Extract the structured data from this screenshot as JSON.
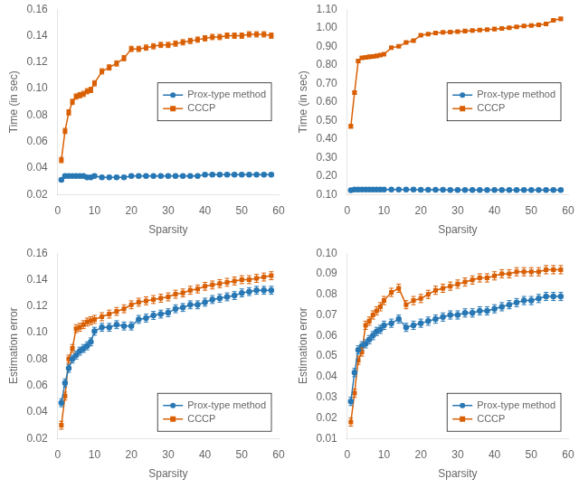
{
  "chart_data": [
    {
      "type": "line",
      "x": [
        1,
        2,
        3,
        4,
        5,
        6,
        7,
        8,
        9,
        10,
        12,
        14,
        16,
        18,
        20,
        22,
        24,
        26,
        28,
        30,
        32,
        34,
        36,
        38,
        40,
        42,
        44,
        46,
        48,
        50,
        52,
        54,
        56,
        58
      ],
      "xlabel": "Sparsity",
      "ylabel": "Time (in sec)",
      "xlim": [
        0,
        60
      ],
      "xticks": [
        0,
        10,
        20,
        30,
        40,
        50,
        60
      ],
      "ylim": [
        0.02,
        0.16
      ],
      "yticks": [
        0.02,
        0.04,
        0.06,
        0.08,
        {
          "value": 0.1,
          "label": "0.10"
        },
        0.12,
        0.14,
        0.16
      ],
      "grid": false,
      "legend": "center right",
      "series": [
        {
          "name": "Prox-type method",
          "color": "#2878b5",
          "marker": "circle",
          "values": [
            0.031,
            0.034,
            0.034,
            0.034,
            0.034,
            0.034,
            0.034,
            0.033,
            0.033,
            0.034,
            0.033,
            0.033,
            0.033,
            0.033,
            0.034,
            0.034,
            0.034,
            0.034,
            0.034,
            0.034,
            0.034,
            0.034,
            0.034,
            0.034,
            0.035,
            0.035,
            0.035,
            0.035,
            0.035,
            0.035,
            0.035,
            0.035,
            0.035,
            0.035
          ],
          "errors": [
            0.001,
            0.001,
            0.001,
            0.001,
            0.001,
            0.001,
            0.001,
            0.001,
            0.001,
            0.001,
            0.001,
            0.001,
            0.001,
            0.001,
            0.001,
            0.001,
            0.001,
            0.001,
            0.001,
            0.001,
            0.001,
            0.001,
            0.001,
            0.001,
            0.001,
            0.001,
            0.001,
            0.001,
            0.001,
            0.001,
            0.001,
            0.001,
            0.001,
            0.001
          ]
        },
        {
          "name": "CCCP",
          "color": "#d95f02",
          "marker": "square",
          "values": [
            0.046,
            0.068,
            0.082,
            0.09,
            0.094,
            0.095,
            0.096,
            0.098,
            0.099,
            0.104,
            0.113,
            0.116,
            0.119,
            0.123,
            0.13,
            0.13,
            0.131,
            0.132,
            0.133,
            0.133,
            0.134,
            0.135,
            0.136,
            0.137,
            0.138,
            0.139,
            0.139,
            0.14,
            0.14,
            0.14,
            0.141,
            0.141,
            0.141,
            0.14
          ],
          "errors": [
            0.002,
            0.002,
            0.002,
            0.002,
            0.002,
            0.002,
            0.002,
            0.002,
            0.002,
            0.002,
            0.002,
            0.002,
            0.002,
            0.002,
            0.002,
            0.002,
            0.002,
            0.002,
            0.002,
            0.002,
            0.002,
            0.002,
            0.002,
            0.002,
            0.002,
            0.002,
            0.002,
            0.002,
            0.002,
            0.002,
            0.002,
            0.002,
            0.002,
            0.002
          ]
        }
      ]
    },
    {
      "type": "line",
      "x": [
        1,
        2,
        3,
        4,
        5,
        6,
        7,
        8,
        9,
        10,
        12,
        14,
        16,
        18,
        20,
        22,
        24,
        26,
        28,
        30,
        32,
        34,
        36,
        38,
        40,
        42,
        44,
        46,
        48,
        50,
        52,
        54,
        56,
        58
      ],
      "xlabel": "Sparsity",
      "ylabel": "Time (in sec)",
      "xlim": [
        0,
        60
      ],
      "xticks": [
        0,
        10,
        20,
        30,
        40,
        50,
        60
      ],
      "ylim": [
        0.1,
        1.1
      ],
      "yticks": [
        {
          "value": 0.1,
          "label": "0.10"
        },
        {
          "value": 0.2,
          "label": "0.20"
        },
        {
          "value": 0.3,
          "label": "0.30"
        },
        {
          "value": 0.4,
          "label": "0.40"
        },
        {
          "value": 0.5,
          "label": "0.50"
        },
        {
          "value": 0.6,
          "label": "0.60"
        },
        {
          "value": 0.7,
          "label": "0.70"
        },
        {
          "value": 0.8,
          "label": "0.80"
        },
        {
          "value": 0.9,
          "label": "0.90"
        },
        {
          "value": 1.0,
          "label": "1.00"
        },
        {
          "value": 1.1,
          "label": "1.10"
        }
      ],
      "grid": false,
      "legend": "center right",
      "series": [
        {
          "name": "Prox-type method",
          "color": "#2878b5",
          "marker": "circle",
          "values": [
            0.123,
            0.127,
            0.127,
            0.127,
            0.127,
            0.127,
            0.127,
            0.127,
            0.127,
            0.126,
            0.126,
            0.126,
            0.126,
            0.126,
            0.125,
            0.125,
            0.125,
            0.125,
            0.124,
            0.124,
            0.124,
            0.124,
            0.124,
            0.124,
            0.124,
            0.124,
            0.124,
            0.124,
            0.124,
            0.124,
            0.124,
            0.124,
            0.124,
            0.124
          ],
          "errors": [
            0.003,
            0.001,
            0.001,
            0.001,
            0.001,
            0.001,
            0.001,
            0.001,
            0.001,
            0.001,
            0.001,
            0.001,
            0.001,
            0.001,
            0.001,
            0.001,
            0.001,
            0.001,
            0.001,
            0.001,
            0.001,
            0.001,
            0.001,
            0.001,
            0.001,
            0.001,
            0.001,
            0.001,
            0.001,
            0.001,
            0.001,
            0.001,
            0.001,
            0.001
          ]
        },
        {
          "name": "CCCP",
          "color": "#d95f02",
          "marker": "square",
          "values": [
            0.468,
            0.65,
            0.82,
            0.838,
            0.84,
            0.843,
            0.845,
            0.848,
            0.852,
            0.857,
            0.892,
            0.9,
            0.92,
            0.93,
            0.96,
            0.966,
            0.972,
            0.975,
            0.977,
            0.979,
            0.982,
            0.985,
            0.988,
            0.99,
            0.993,
            0.996,
            1.0,
            1.005,
            1.01,
            1.012,
            1.016,
            1.02,
            1.04,
            1.048
          ],
          "errors": [
            0.01,
            0.008,
            0.006,
            0.005,
            0.005,
            0.005,
            0.005,
            0.005,
            0.005,
            0.005,
            0.005,
            0.005,
            0.005,
            0.005,
            0.005,
            0.005,
            0.005,
            0.005,
            0.005,
            0.005,
            0.005,
            0.005,
            0.005,
            0.005,
            0.005,
            0.005,
            0.005,
            0.005,
            0.005,
            0.005,
            0.005,
            0.005,
            0.005,
            0.005
          ]
        }
      ]
    },
    {
      "type": "line",
      "x": [
        1,
        2,
        3,
        4,
        5,
        6,
        7,
        8,
        9,
        10,
        12,
        14,
        16,
        18,
        20,
        22,
        24,
        26,
        28,
        30,
        32,
        34,
        36,
        38,
        40,
        42,
        44,
        46,
        48,
        50,
        52,
        54,
        56,
        58
      ],
      "xlabel": "Sparsity",
      "ylabel": "Estimation error",
      "xlim": [
        0,
        60
      ],
      "xticks": [
        0,
        10,
        20,
        30,
        40,
        50,
        60
      ],
      "ylim": [
        0.02,
        0.16
      ],
      "yticks": [
        0.02,
        0.04,
        0.06,
        0.08,
        {
          "value": 0.1,
          "label": "0.10"
        },
        0.12,
        0.14,
        0.16
      ],
      "grid": false,
      "legend": "lower right",
      "series": [
        {
          "name": "Prox-type method",
          "color": "#2878b5",
          "marker": "circle",
          "values": [
            0.047,
            0.062,
            0.073,
            0.08,
            0.083,
            0.086,
            0.088,
            0.09,
            0.093,
            0.101,
            0.104,
            0.104,
            0.106,
            0.105,
            0.105,
            0.11,
            0.111,
            0.113,
            0.114,
            0.115,
            0.118,
            0.119,
            0.121,
            0.121,
            0.123,
            0.125,
            0.126,
            0.127,
            0.128,
            0.13,
            0.131,
            0.132,
            0.132,
            0.132
          ],
          "errors": [
            0.003,
            0.003,
            0.003,
            0.003,
            0.003,
            0.003,
            0.003,
            0.003,
            0.003,
            0.003,
            0.003,
            0.003,
            0.003,
            0.003,
            0.003,
            0.003,
            0.003,
            0.003,
            0.003,
            0.003,
            0.003,
            0.003,
            0.003,
            0.003,
            0.003,
            0.003,
            0.003,
            0.003,
            0.003,
            0.003,
            0.003,
            0.003,
            0.003,
            0.003
          ]
        },
        {
          "name": "CCCP",
          "color": "#d95f02",
          "marker": "square",
          "values": [
            0.03,
            0.052,
            0.08,
            0.088,
            0.103,
            0.104,
            0.106,
            0.108,
            0.109,
            0.11,
            0.112,
            0.114,
            0.116,
            0.118,
            0.121,
            0.123,
            0.124,
            0.125,
            0.126,
            0.127,
            0.129,
            0.13,
            0.132,
            0.133,
            0.135,
            0.136,
            0.137,
            0.138,
            0.139,
            0.14,
            0.14,
            0.141,
            0.142,
            0.143
          ],
          "errors": [
            0.003,
            0.003,
            0.003,
            0.003,
            0.003,
            0.003,
            0.003,
            0.003,
            0.003,
            0.003,
            0.003,
            0.003,
            0.003,
            0.003,
            0.003,
            0.003,
            0.003,
            0.003,
            0.003,
            0.003,
            0.003,
            0.003,
            0.003,
            0.003,
            0.003,
            0.003,
            0.003,
            0.003,
            0.003,
            0.003,
            0.003,
            0.003,
            0.003,
            0.003
          ]
        }
      ]
    },
    {
      "type": "line",
      "x": [
        1,
        2,
        3,
        4,
        5,
        6,
        7,
        8,
        9,
        10,
        12,
        14,
        16,
        18,
        20,
        22,
        24,
        26,
        28,
        30,
        32,
        34,
        36,
        38,
        40,
        42,
        44,
        46,
        48,
        50,
        52,
        54,
        56,
        58
      ],
      "xlabel": "Sparsity",
      "ylabel": "Estimation error",
      "xlim": [
        0,
        60
      ],
      "xticks": [
        0,
        10,
        20,
        30,
        40,
        50,
        60
      ],
      "ylim": [
        0.01,
        0.1
      ],
      "yticks": [
        0.01,
        0.02,
        0.03,
        0.04,
        0.05,
        0.06,
        0.07,
        0.08,
        0.09,
        {
          "value": 0.1,
          "label": "0.10"
        }
      ],
      "grid": false,
      "legend": "lower right",
      "series": [
        {
          "name": "Prox-type method",
          "color": "#2878b5",
          "marker": "circle",
          "values": [
            0.028,
            0.042,
            0.053,
            0.055,
            0.056,
            0.058,
            0.06,
            0.062,
            0.063,
            0.065,
            0.066,
            0.068,
            0.064,
            0.065,
            0.066,
            0.067,
            0.068,
            0.069,
            0.07,
            0.07,
            0.071,
            0.071,
            0.072,
            0.072,
            0.073,
            0.074,
            0.075,
            0.076,
            0.077,
            0.077,
            0.078,
            0.079,
            0.079,
            0.079
          ],
          "errors": [
            0.002,
            0.002,
            0.002,
            0.002,
            0.002,
            0.002,
            0.002,
            0.002,
            0.002,
            0.002,
            0.002,
            0.002,
            0.002,
            0.002,
            0.002,
            0.002,
            0.002,
            0.002,
            0.002,
            0.002,
            0.002,
            0.002,
            0.002,
            0.002,
            0.002,
            0.002,
            0.002,
            0.002,
            0.002,
            0.002,
            0.002,
            0.002,
            0.002,
            0.002
          ]
        },
        {
          "name": "CCCP",
          "color": "#d95f02",
          "marker": "square",
          "values": [
            0.018,
            0.032,
            0.048,
            0.052,
            0.065,
            0.067,
            0.07,
            0.072,
            0.074,
            0.077,
            0.081,
            0.083,
            0.075,
            0.077,
            0.078,
            0.08,
            0.082,
            0.083,
            0.084,
            0.085,
            0.086,
            0.087,
            0.088,
            0.088,
            0.089,
            0.09,
            0.09,
            0.091,
            0.091,
            0.091,
            0.091,
            0.092,
            0.092,
            0.092
          ],
          "errors": [
            0.002,
            0.002,
            0.002,
            0.002,
            0.002,
            0.002,
            0.002,
            0.002,
            0.002,
            0.002,
            0.002,
            0.002,
            0.002,
            0.002,
            0.002,
            0.002,
            0.002,
            0.002,
            0.002,
            0.002,
            0.002,
            0.002,
            0.002,
            0.002,
            0.002,
            0.002,
            0.002,
            0.002,
            0.002,
            0.002,
            0.002,
            0.002,
            0.002,
            0.002
          ]
        }
      ]
    }
  ]
}
